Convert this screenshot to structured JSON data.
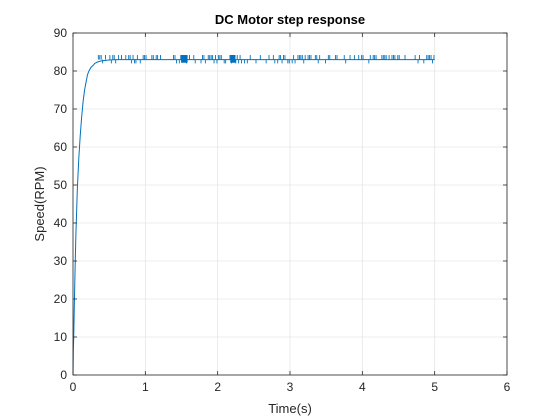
{
  "chart_data": {
    "type": "line",
    "title": "DC Motor step response",
    "xlabel": "Time(s)",
    "ylabel": "Speed(RPM)",
    "xlim": [
      0,
      6
    ],
    "ylim": [
      0,
      90
    ],
    "xticks": [
      "0",
      "1",
      "2",
      "3",
      "4",
      "5",
      "6"
    ],
    "yticks": [
      "0",
      "10",
      "20",
      "30",
      "40",
      "50",
      "60",
      "70",
      "80",
      "90"
    ],
    "grid": true,
    "legend": "none",
    "colors": {
      "series": "#0072bd",
      "grid": "#e6e6e6",
      "axis": "#262626"
    },
    "series": [
      {
        "x": [
          0,
          0.005,
          0.01,
          0.02,
          0.03,
          0.04,
          0.05,
          0.06,
          0.08,
          0.1,
          0.12,
          0.14,
          0.16,
          0.18,
          0.2,
          0.22,
          0.25,
          0.28,
          0.3,
          0.33,
          0.36,
          0.4,
          0.45,
          0.5,
          0.6,
          0.8,
          1.0,
          1.5,
          2.0,
          2.5,
          3.0,
          3.5,
          4.0,
          4.5,
          5.0
        ],
        "values": [
          0,
          7,
          10,
          20,
          29,
          37,
          43,
          49,
          57,
          63,
          68,
          72,
          75,
          77,
          79,
          80,
          81,
          81.5,
          82,
          82.3,
          82.5,
          82.7,
          82.8,
          82.9,
          83,
          83,
          83,
          83,
          83,
          83,
          83,
          83,
          83,
          83,
          83
        ]
      }
    ]
  }
}
